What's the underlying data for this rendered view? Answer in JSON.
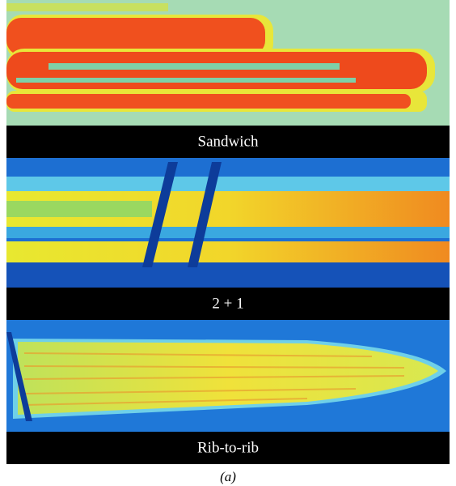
{
  "panels": [
    {
      "label": "Sandwich"
    },
    {
      "label": "2 + 1"
    },
    {
      "label": "Rib-to-rib"
    }
  ],
  "caption": "(a)"
}
